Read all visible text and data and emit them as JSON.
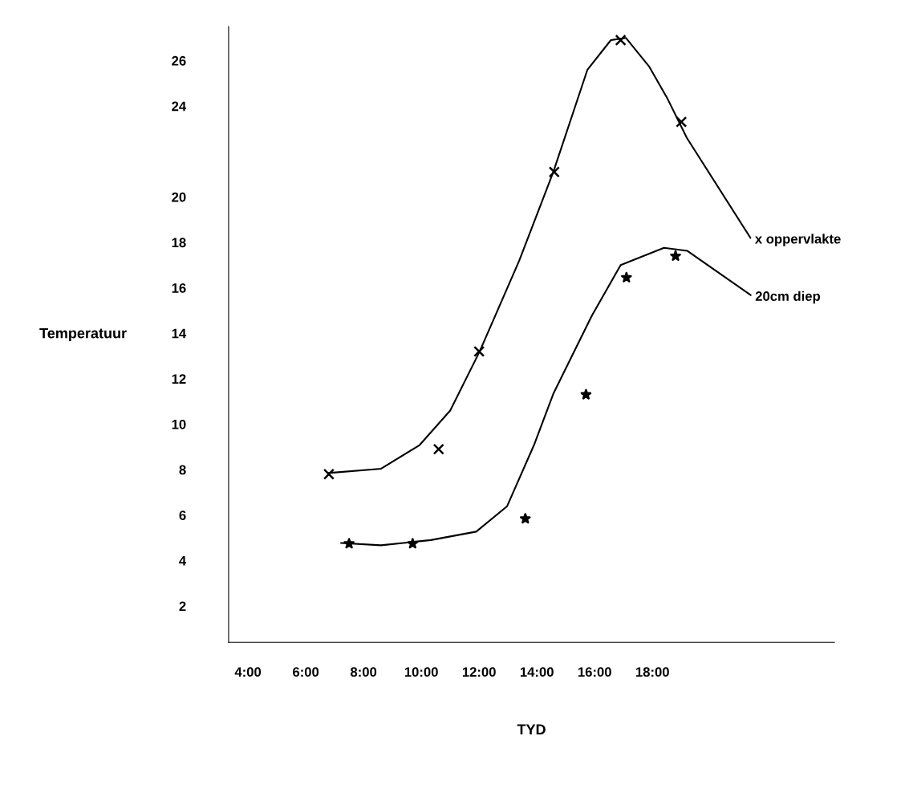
{
  "chart_data": {
    "type": "line",
    "xlabel": "TYD",
    "ylabel": "Temperatuur",
    "xlim": [
      3.33,
      24.3
    ],
    "ylim": [
      0.4,
      27.5
    ],
    "xticks": [
      {
        "value": 4,
        "label": "4:00"
      },
      {
        "value": 6,
        "label": "6:00"
      },
      {
        "value": 8,
        "label": "8:00"
      },
      {
        "value": 10,
        "label": "10:00"
      },
      {
        "value": 12,
        "label": "12:00"
      },
      {
        "value": 14,
        "label": "14:00"
      },
      {
        "value": 16,
        "label": "16:00"
      },
      {
        "value": 18,
        "label": "18:00"
      }
    ],
    "yticks": [
      2,
      4,
      6,
      8,
      10,
      12,
      14,
      16,
      18,
      20,
      24,
      26
    ],
    "grid": false,
    "legend": false,
    "series": [
      {
        "type": "scatter",
        "marker": "cross",
        "color": "#000000",
        "x": [
          6.8,
          10.6,
          12.0,
          14.6,
          16.9,
          19.0
        ],
        "values": [
          7.8,
          8.9,
          13.2,
          21.1,
          26.9,
          23.3
        ]
      },
      {
        "marker": "none",
        "name": "x oppervlakte",
        "color": "#000000",
        "x": [
          6.77,
          8.61,
          9.94,
          11.0,
          12.02,
          13.39,
          14.57,
          15.75,
          16.56,
          17.08,
          17.88,
          18.53,
          19.19,
          21.39
        ],
        "values": [
          7.85,
          8.04,
          9.08,
          10.6,
          13.2,
          17.2,
          21.1,
          25.6,
          26.9,
          27.0,
          25.75,
          24.3,
          22.6,
          18.2
        ]
      },
      {
        "type": "scatter",
        "marker": "star",
        "color": "#000000",
        "x": [
          7.5,
          9.7,
          13.6,
          15.7,
          17.1,
          18.8
        ],
        "values": [
          4.74,
          4.74,
          5.84,
          11.3,
          16.45,
          17.4
        ]
      },
      {
        "marker": "none",
        "name": "20cm diep",
        "color": "#000000",
        "x": [
          7.22,
          8.6,
          10.33,
          11.9,
          12.97,
          13.9,
          14.57,
          15.9,
          16.9,
          18.4,
          19.2,
          21.4
        ],
        "values": [
          4.77,
          4.67,
          4.9,
          5.27,
          6.39,
          9.08,
          11.34,
          14.77,
          17.0,
          17.76,
          17.63,
          15.68
        ]
      }
    ]
  }
}
